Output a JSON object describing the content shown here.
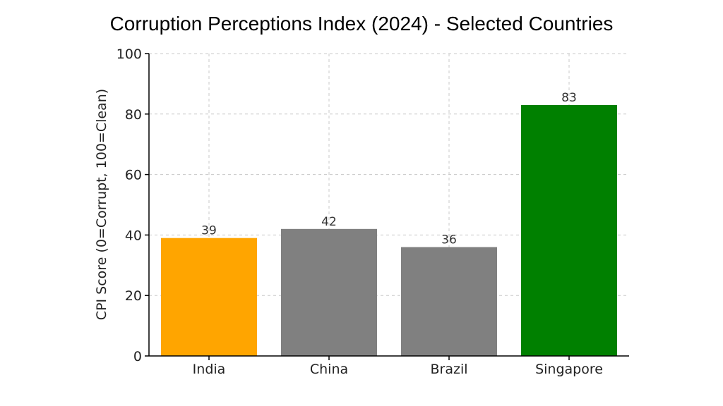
{
  "chart_data": {
    "type": "bar",
    "title": "Corruption Perceptions Index (2024) - Selected Countries",
    "xlabel": "",
    "ylabel": "CPI Score (0=Corrupt, 100=Clean)",
    "categories": [
      "India",
      "China",
      "Brazil",
      "Singapore"
    ],
    "values": [
      39,
      42,
      36,
      83
    ],
    "colors": [
      "#FFA500",
      "#808080",
      "#808080",
      "#008000"
    ],
    "ylim": [
      0,
      100
    ],
    "yticks": [
      0,
      20,
      40,
      60,
      80,
      100
    ],
    "grid": true,
    "legend": "none"
  }
}
